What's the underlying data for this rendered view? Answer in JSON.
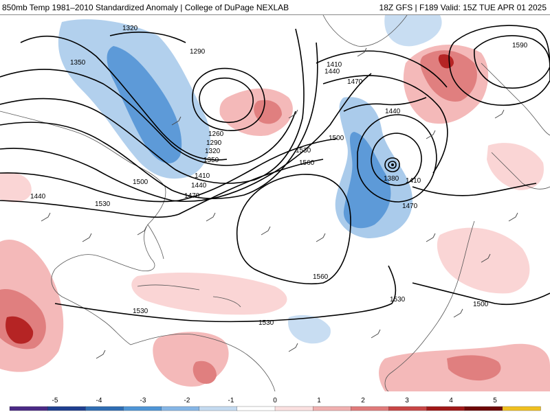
{
  "header": {
    "title_left": "850mb Temp 1981–2010 Standardized Anomaly | College of DuPage NEXLAB",
    "title_right": "18Z GFS | F189 Valid: 15Z TUE APR 01 2025"
  },
  "map": {
    "contour_labels": [
      "1320",
      "1290",
      "1350",
      "1260",
      "1290",
      "1320",
      "1350",
      "1410",
      "1440",
      "1470",
      "1500",
      "1440",
      "1530",
      "1410",
      "1440",
      "1470",
      "1500",
      "1530",
      "1560",
      "1440",
      "1380",
      "1410",
      "1470",
      "1590",
      "1560",
      "1530",
      "1530",
      "1530",
      "1500"
    ]
  },
  "colorbar": {
    "tick_labels": [
      "-5",
      "-4",
      "-3",
      "-2",
      "-1",
      "0",
      "1",
      "2",
      "3",
      "4",
      "5"
    ],
    "colors": [
      "#4b2a86",
      "#1f3f8f",
      "#2f6db3",
      "#4f95d6",
      "#86b6e6",
      "#c4daf0",
      "#ffffff",
      "#fbe0e0",
      "#f1b0b0",
      "#e07b7b",
      "#c84646",
      "#a01818",
      "#6e0808",
      "#f0c020"
    ]
  }
}
